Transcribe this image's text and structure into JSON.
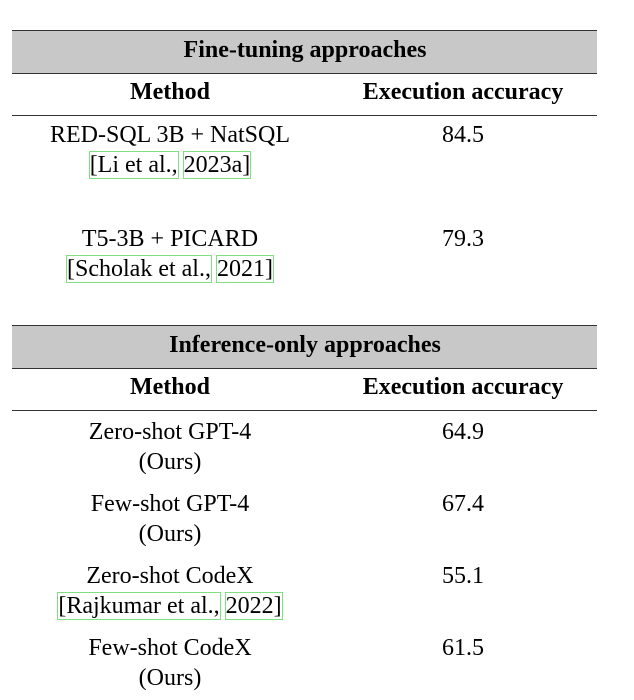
{
  "sections": [
    {
      "title": "Fine-tuning approaches",
      "header": {
        "method": "Method",
        "accuracy": "Execution accuracy"
      },
      "rows": [
        {
          "method": "RED-SQL 3B + NatSQL",
          "cite": {
            "authors": "[Li et al.,",
            "year": "2023a]"
          },
          "accuracy": "84.5"
        },
        {
          "method": "T5-3B + PICARD",
          "cite": {
            "authors": "[Scholak et al.,",
            "year": "2021]"
          },
          "accuracy": "79.3"
        }
      ]
    },
    {
      "title": "Inference-only approaches",
      "header": {
        "method": "Method",
        "accuracy": "Execution accuracy"
      },
      "rows": [
        {
          "method": "Zero-shot GPT-4",
          "note": "(Ours)",
          "accuracy": "64.9"
        },
        {
          "method": "Few-shot GPT-4",
          "note": "(Ours)",
          "accuracy": "67.4"
        },
        {
          "method": "Zero-shot CodeX",
          "cite": {
            "authors": "[Rajkumar et al.,",
            "year": "2022]"
          },
          "accuracy": "55.1"
        },
        {
          "method": "Few-shot CodeX",
          "note": "(Ours)",
          "accuracy": "61.5"
        }
      ]
    }
  ]
}
